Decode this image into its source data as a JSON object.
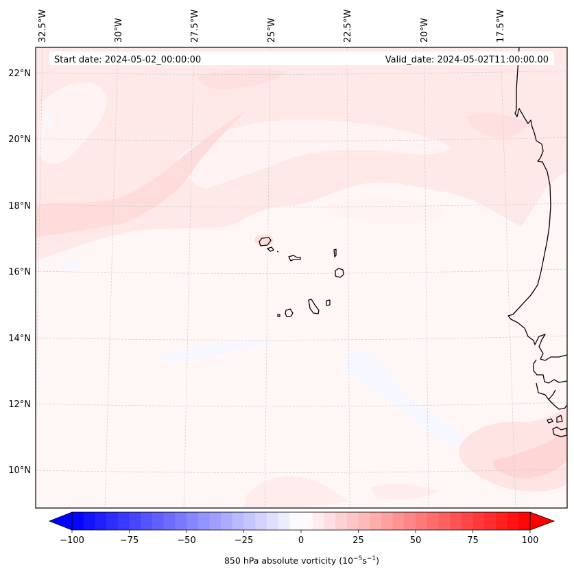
{
  "figure": {
    "start_date_label": "Start date: 2024-05-02_00:00:00",
    "valid_date_label": "Valid_date: 2024-05-02T11:00:00.00"
  },
  "chart_data": {
    "type": "heatmap",
    "title": "",
    "projection": "Lambert conformal (cartopy-style map)",
    "field": "850 hPa absolute vorticity",
    "units": "10^-5 s^-1",
    "extent": {
      "lon": [
        -33.0,
        -15.0
      ],
      "lat": [
        8.8,
        22.8
      ]
    },
    "lon_ticks": [
      {
        "value": -32.5,
        "label": "32.5°W"
      },
      {
        "value": -30.0,
        "label": "30°W"
      },
      {
        "value": -27.5,
        "label": "27.5°W"
      },
      {
        "value": -25.0,
        "label": "25°W"
      },
      {
        "value": -22.5,
        "label": "22.5°W"
      },
      {
        "value": -20.0,
        "label": "20°W"
      },
      {
        "value": -17.5,
        "label": "17.5°W"
      }
    ],
    "lat_ticks": [
      {
        "value": 22,
        "label": "22°N"
      },
      {
        "value": 20,
        "label": "20°N"
      },
      {
        "value": 18,
        "label": "18°N"
      },
      {
        "value": 16,
        "label": "16°N"
      },
      {
        "value": 14,
        "label": "14°N"
      },
      {
        "value": 12,
        "label": "12°N"
      },
      {
        "value": 10,
        "label": "10°N"
      }
    ],
    "gridlines": true,
    "colorbar": {
      "label": "850 hPa absolute vorticity (10",
      "label_exp1": "−5",
      "label_mid": "s",
      "label_exp2": "−1",
      "label_end": ")",
      "orientation": "horizontal",
      "placement": "bottom",
      "vmin": -100,
      "vmax": 100,
      "step": 5,
      "extend": "both",
      "cmap": "bwr",
      "colors": {
        "min": "#0000ff",
        "mid": "#ffffff",
        "max": "#ff0000"
      },
      "ticks": [
        {
          "value": -100,
          "label": "−100"
        },
        {
          "value": -75,
          "label": "−75"
        },
        {
          "value": -50,
          "label": "−50"
        },
        {
          "value": -25,
          "label": "−25"
        },
        {
          "value": 0,
          "label": "0"
        },
        {
          "value": 25,
          "label": "25"
        },
        {
          "value": 50,
          "label": "50"
        },
        {
          "value": 75,
          "label": "75"
        },
        {
          "value": 100,
          "label": "100"
        }
      ]
    },
    "field_summary": {
      "background_level": [
        0,
        5
      ],
      "north_band_level": [
        5,
        15
      ],
      "southeast_patch_level": [
        10,
        20
      ],
      "weak_negative_patches_level": [
        -5,
        0
      ]
    },
    "features": [
      {
        "name": "Cape Verde islands",
        "type": "coastline"
      },
      {
        "name": "West African coast (Mauritania, Senegal, Gambia, Guinea-Bissau)",
        "type": "coastline"
      }
    ]
  }
}
